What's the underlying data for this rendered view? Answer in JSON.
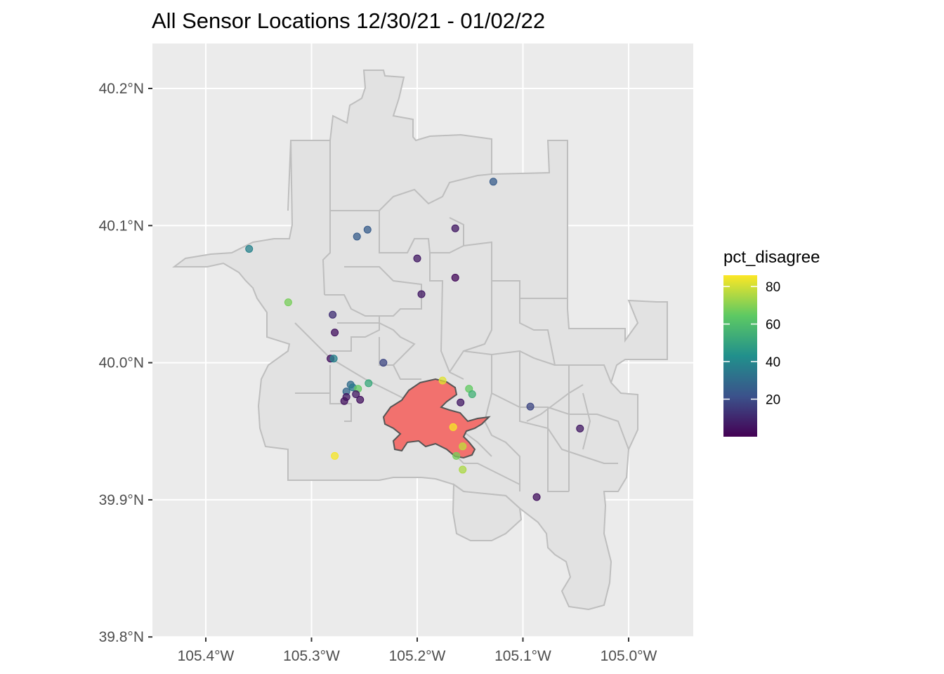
{
  "chart_data": {
    "type": "scatter",
    "title": "All Sensor Locations 12/30/21 - 01/02/22",
    "xlabel": "",
    "ylabel": "",
    "xlim": [
      -105.45,
      -104.94
    ],
    "ylim": [
      39.8,
      40.23
    ],
    "x_ticks": [
      {
        "value": -105.4,
        "label": "105.4°W"
      },
      {
        "value": -105.3,
        "label": "105.3°W"
      },
      {
        "value": -105.2,
        "label": "105.2°W"
      },
      {
        "value": -105.1,
        "label": "105.1°W"
      },
      {
        "value": -105.0,
        "label": "105.0°W"
      }
    ],
    "y_ticks": [
      {
        "value": 39.8,
        "label": "39.8°N"
      },
      {
        "value": 39.9,
        "label": "39.9°N"
      },
      {
        "value": 40.0,
        "label": "40.0°N"
      },
      {
        "value": 40.1,
        "label": "40.1°N"
      },
      {
        "value": 40.2,
        "label": "40.2°N"
      }
    ],
    "grid": true,
    "background_color": "#ebebeb",
    "region_fill": "#e2e2e2",
    "region_stroke": "#bebebe",
    "fire_fill": "#f2716e",
    "fire_stroke": "#555555",
    "legend": {
      "title": "pct_disagree",
      "placement": "right",
      "range": [
        0,
        86
      ],
      "ticks": [
        20,
        40,
        60,
        80
      ],
      "tick_labels": [
        "20",
        "40",
        "60",
        "80"
      ],
      "colors": [
        "#440154",
        "#3b528b",
        "#21908c",
        "#5dc963",
        "#fde725"
      ]
    },
    "sensors": [
      {
        "lon": -105.128,
        "lat": 40.132,
        "pct_disagree": 25
      },
      {
        "lon": -105.247,
        "lat": 40.097,
        "pct_disagree": 25
      },
      {
        "lon": -105.257,
        "lat": 40.092,
        "pct_disagree": 25
      },
      {
        "lon": -105.164,
        "lat": 40.098,
        "pct_disagree": 6
      },
      {
        "lon": -105.359,
        "lat": 40.083,
        "pct_disagree": 38
      },
      {
        "lon": -105.2,
        "lat": 40.076,
        "pct_disagree": 6
      },
      {
        "lon": -105.164,
        "lat": 40.062,
        "pct_disagree": 2
      },
      {
        "lon": -105.196,
        "lat": 40.05,
        "pct_disagree": 6
      },
      {
        "lon": -105.322,
        "lat": 40.044,
        "pct_disagree": 68
      },
      {
        "lon": -105.28,
        "lat": 40.035,
        "pct_disagree": 12
      },
      {
        "lon": -105.278,
        "lat": 40.022,
        "pct_disagree": 4
      },
      {
        "lon": -105.282,
        "lat": 40.003,
        "pct_disagree": 4
      },
      {
        "lon": -105.279,
        "lat": 40.003,
        "pct_disagree": 38
      },
      {
        "lon": -105.232,
        "lat": 40.0,
        "pct_disagree": 18
      },
      {
        "lon": -105.176,
        "lat": 39.987,
        "pct_disagree": 82
      },
      {
        "lon": -105.246,
        "lat": 39.985,
        "pct_disagree": 52
      },
      {
        "lon": -105.263,
        "lat": 39.984,
        "pct_disagree": 30
      },
      {
        "lon": -105.261,
        "lat": 39.982,
        "pct_disagree": 35
      },
      {
        "lon": -105.256,
        "lat": 39.981,
        "pct_disagree": 65
      },
      {
        "lon": -105.151,
        "lat": 39.981,
        "pct_disagree": 65
      },
      {
        "lon": -105.267,
        "lat": 39.979,
        "pct_disagree": 28
      },
      {
        "lon": -105.148,
        "lat": 39.977,
        "pct_disagree": 55
      },
      {
        "lon": -105.258,
        "lat": 39.977,
        "pct_disagree": 6
      },
      {
        "lon": -105.267,
        "lat": 39.975,
        "pct_disagree": 6
      },
      {
        "lon": -105.254,
        "lat": 39.973,
        "pct_disagree": 4
      },
      {
        "lon": -105.269,
        "lat": 39.972,
        "pct_disagree": 4
      },
      {
        "lon": -105.159,
        "lat": 39.971,
        "pct_disagree": 6
      },
      {
        "lon": -105.093,
        "lat": 39.968,
        "pct_disagree": 18
      },
      {
        "lon": -105.166,
        "lat": 39.953,
        "pct_disagree": 85
      },
      {
        "lon": -105.046,
        "lat": 39.952,
        "pct_disagree": 6
      },
      {
        "lon": -105.157,
        "lat": 39.939,
        "pct_disagree": 78
      },
      {
        "lon": -105.163,
        "lat": 39.932,
        "pct_disagree": 68
      },
      {
        "lon": -105.278,
        "lat": 39.932,
        "pct_disagree": 85
      },
      {
        "lon": -105.157,
        "lat": 39.922,
        "pct_disagree": 75
      },
      {
        "lon": -105.087,
        "lat": 39.902,
        "pct_disagree": 4
      }
    ]
  }
}
